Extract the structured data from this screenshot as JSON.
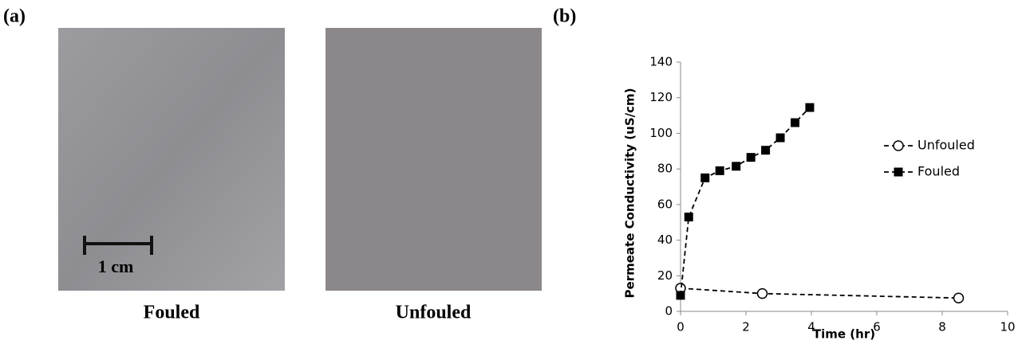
{
  "panel_a": {
    "label": "(a)",
    "images": [
      {
        "caption": "Fouled"
      },
      {
        "caption": "Unfouled"
      }
    ],
    "scale_bar": "1 cm"
  },
  "panel_b_label": "(b)",
  "chart_data": {
    "type": "scatter",
    "x_label": "Time (hr)",
    "y_label": "Permeate Conductivity (uS/cm)",
    "xlim": [
      0,
      10
    ],
    "xticks": [
      0,
      2,
      4,
      6,
      8,
      10
    ],
    "ylim": [
      0,
      140
    ],
    "yticks": [
      0,
      20,
      40,
      60,
      80,
      100,
      120,
      140
    ],
    "legend": "right",
    "line_style": "dashed",
    "series": [
      {
        "name": "Unfouled",
        "marker": "open-circle",
        "color": "#000000",
        "x": [
          0,
          2.5,
          8.5
        ],
        "values": [
          13,
          10,
          7.5
        ]
      },
      {
        "name": "Fouled",
        "marker": "square",
        "color": "#000000",
        "x": [
          0,
          0.25,
          0.75,
          1.2,
          1.7,
          2.15,
          2.6,
          3.05,
          3.5,
          3.95
        ],
        "values": [
          9,
          53,
          75,
          79,
          81.5,
          86.5,
          90.5,
          97.5,
          106,
          114.5
        ]
      }
    ]
  }
}
